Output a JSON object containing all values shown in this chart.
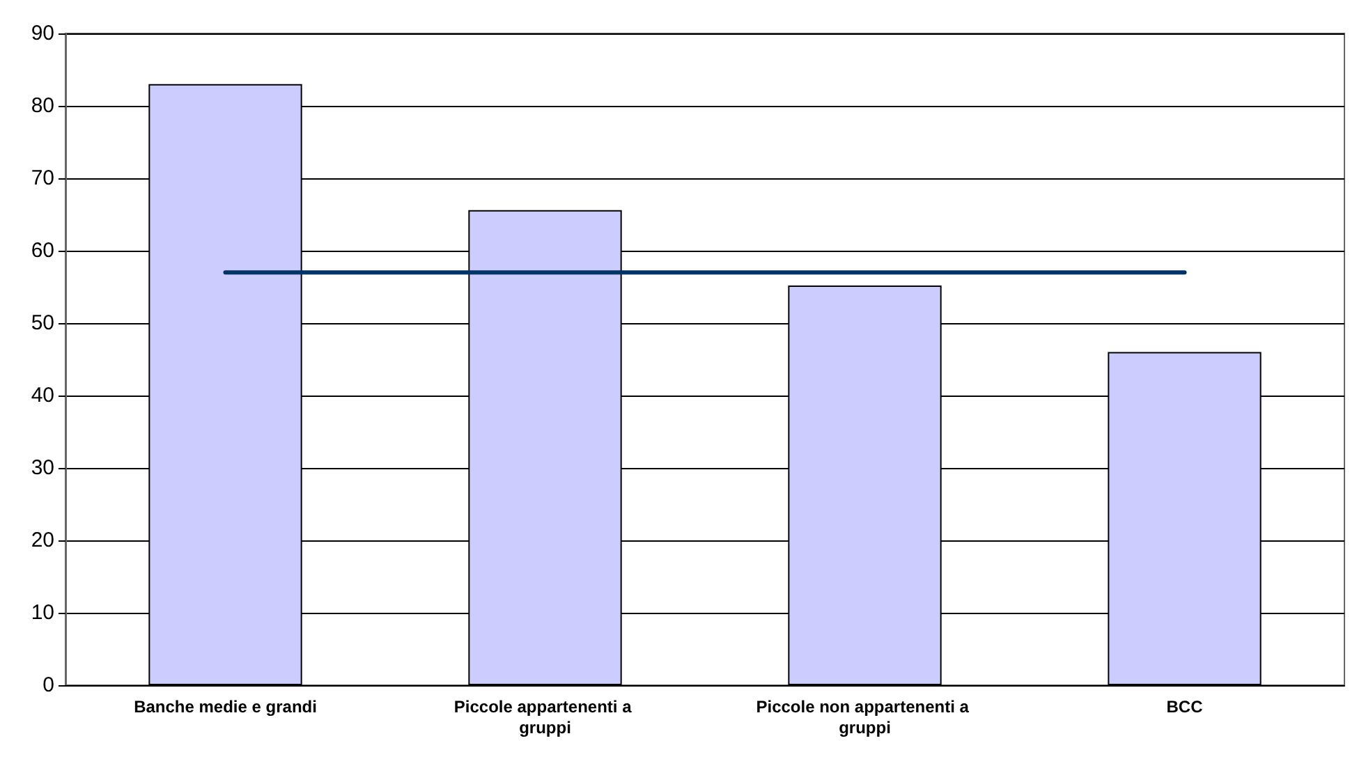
{
  "chart_data": {
    "type": "bar",
    "categories": [
      "Banche medie e grandi",
      "Piccole appartenenti a gruppi",
      "Piccole non appartenenti a gruppi",
      "BCC"
    ],
    "series": [
      {
        "color": "#ccccff",
        "values": [
          83,
          65.6,
          55.2,
          46
        ]
      },
      {
        "type": "line",
        "color": "#003366",
        "values": [
          57,
          57,
          57,
          57
        ]
      }
    ],
    "ylim": [
      0,
      90
    ],
    "yticks": [
      0,
      10,
      20,
      30,
      40,
      50,
      60,
      70,
      80,
      90
    ],
    "grid": "y",
    "marker": "none",
    "line_style": "solid"
  }
}
